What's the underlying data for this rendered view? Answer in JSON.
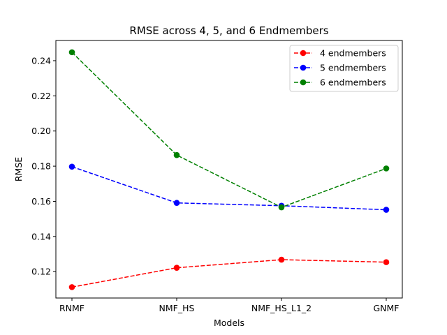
{
  "chart_data": {
    "type": "line",
    "title": "RMSE across 4, 5, and 6 Endmembers",
    "xlabel": "Models",
    "ylabel": "RMSE",
    "categories": [
      "RNMF",
      "NMF_HS",
      "NMF_HS_L1_2",
      "GNMF"
    ],
    "ylim": [
      0.105,
      0.2515
    ],
    "yticks": [
      0.12,
      0.14,
      0.16,
      0.18,
      0.2,
      0.22,
      0.24
    ],
    "ytick_labels": [
      "0.12",
      "0.14",
      "0.16",
      "0.18",
      "0.20",
      "0.22",
      "0.24"
    ],
    "grid": false,
    "legend_position": "top-right",
    "line_style": "dashed",
    "marker": "circle",
    "series": [
      {
        "name": "4 endmembers",
        "color": "#ff0000",
        "values": [
          0.1112,
          0.1222,
          0.1268,
          0.1254
        ]
      },
      {
        "name": "5 endmembers",
        "color": "#0000ff",
        "values": [
          0.1797,
          0.1591,
          0.1575,
          0.1552
        ]
      },
      {
        "name": "6 endmembers",
        "color": "#008000",
        "values": [
          0.2448,
          0.1863,
          0.1566,
          0.1787
        ]
      }
    ]
  }
}
